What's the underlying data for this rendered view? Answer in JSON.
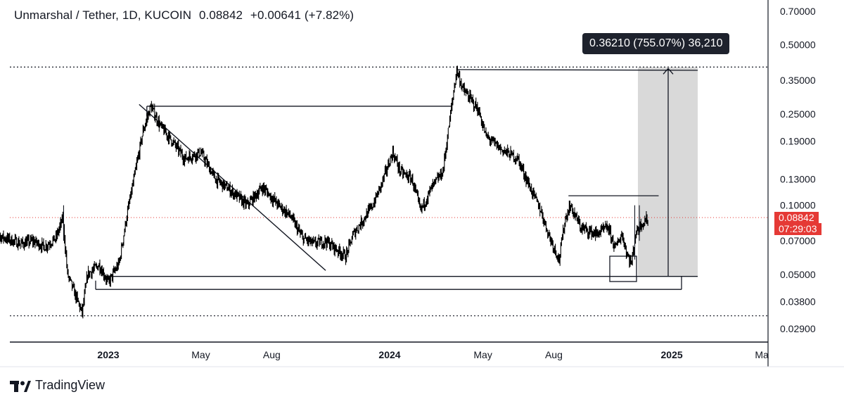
{
  "header": {
    "symbol": "Unmarshal / Tether, 1D, KUCOIN",
    "last": "0.08842",
    "change": "+0.00641 (+7.82%)"
  },
  "price_tag": {
    "price": "0.08842",
    "countdown": "07:29:03"
  },
  "measure_label": "0.36210 (755.07%) 36,210",
  "brand": {
    "name": "TradingView"
  },
  "colors": {
    "candle": "#000000",
    "last_price_line": "#e53935",
    "shade": "#d9d9d9",
    "label_bg": "#1e222d"
  },
  "chart_data": {
    "type": "line",
    "y_scale": "log",
    "ylim": [
      0.026,
      0.75
    ],
    "x_ticks": [
      {
        "label": "2023",
        "date": "2023-01-01",
        "bold": true
      },
      {
        "label": "May",
        "date": "2023-05-01",
        "bold": false
      },
      {
        "label": "Aug",
        "date": "2023-08-01",
        "bold": false
      },
      {
        "label": "2024",
        "date": "2024-01-01",
        "bold": true
      },
      {
        "label": "May",
        "date": "2024-05-01",
        "bold": false
      },
      {
        "label": "Aug",
        "date": "2024-08-01",
        "bold": false
      },
      {
        "label": "2025",
        "date": "2025-01-01",
        "bold": true
      },
      {
        "label": "May",
        "date": "2025-05-01",
        "bold": false
      }
    ],
    "y_ticks": [
      "0.70000",
      "0.50000",
      "0.35000",
      "0.25000",
      "0.19000",
      "0.13000",
      "0.10000",
      "0.07000",
      "0.05000",
      "0.03800",
      "0.02900"
    ],
    "price_points": [
      [
        "2022-08-01",
        0.075
      ],
      [
        "2022-08-20",
        0.072
      ],
      [
        "2022-09-10",
        0.068
      ],
      [
        "2022-09-25",
        0.07
      ],
      [
        "2022-10-10",
        0.066
      ],
      [
        "2022-10-25",
        0.072
      ],
      [
        "2022-11-03",
        0.088
      ],
      [
        "2022-11-09",
        0.05
      ],
      [
        "2022-11-20",
        0.04
      ],
      [
        "2022-11-28",
        0.034
      ],
      [
        "2022-12-05",
        0.05
      ],
      [
        "2022-12-20",
        0.055
      ],
      [
        "2023-01-01",
        0.046
      ],
      [
        "2023-01-15",
        0.056
      ],
      [
        "2023-01-25",
        0.09
      ],
      [
        "2023-02-05",
        0.14
      ],
      [
        "2023-02-15",
        0.21
      ],
      [
        "2023-02-25",
        0.27
      ],
      [
        "2023-03-10",
        0.22
      ],
      [
        "2023-03-25",
        0.19
      ],
      [
        "2023-04-10",
        0.16
      ],
      [
        "2023-05-01",
        0.17
      ],
      [
        "2023-05-20",
        0.13
      ],
      [
        "2023-06-10",
        0.115
      ],
      [
        "2023-06-30",
        0.1
      ],
      [
        "2023-07-20",
        0.12
      ],
      [
        "2023-08-10",
        0.1
      ],
      [
        "2023-08-25",
        0.09
      ],
      [
        "2023-09-10",
        0.072
      ],
      [
        "2023-09-25",
        0.068
      ],
      [
        "2023-10-10",
        0.07
      ],
      [
        "2023-10-25",
        0.064
      ],
      [
        "2023-11-05",
        0.06
      ],
      [
        "2023-11-15",
        0.075
      ],
      [
        "2023-12-01",
        0.09
      ],
      [
        "2023-12-10",
        0.1
      ],
      [
        "2023-12-20",
        0.12
      ],
      [
        "2024-01-05",
        0.17
      ],
      [
        "2024-01-15",
        0.14
      ],
      [
        "2024-01-30",
        0.13
      ],
      [
        "2024-02-10",
        0.095
      ],
      [
        "2024-02-25",
        0.12
      ],
      [
        "2024-03-10",
        0.14
      ],
      [
        "2024-03-20",
        0.25
      ],
      [
        "2024-03-28",
        0.39
      ],
      [
        "2024-04-05",
        0.32
      ],
      [
        "2024-04-15",
        0.29
      ],
      [
        "2024-04-25",
        0.26
      ],
      [
        "2024-05-05",
        0.2
      ],
      [
        "2024-05-25",
        0.175
      ],
      [
        "2024-06-15",
        0.16
      ],
      [
        "2024-07-01",
        0.12
      ],
      [
        "2024-07-15",
        0.095
      ],
      [
        "2024-07-25",
        0.075
      ],
      [
        "2024-08-01",
        0.066
      ],
      [
        "2024-08-08",
        0.058
      ],
      [
        "2024-08-15",
        0.085
      ],
      [
        "2024-08-22",
        0.1
      ],
      [
        "2024-09-05",
        0.08
      ],
      [
        "2024-09-25",
        0.075
      ],
      [
        "2024-10-10",
        0.08
      ],
      [
        "2024-10-20",
        0.065
      ],
      [
        "2024-10-28",
        0.075
      ],
      [
        "2024-11-05",
        0.06
      ],
      [
        "2024-11-10",
        0.056
      ],
      [
        "2024-11-15",
        0.075
      ],
      [
        "2024-11-22",
        0.083
      ],
      [
        "2024-12-02",
        0.088
      ]
    ],
    "drawings": {
      "top_resistance": 0.39,
      "mid_resistance": 0.27,
      "local_resistance": 0.11,
      "support": 0.049,
      "low_support": 0.043,
      "lowest_line": 0.033,
      "last_price": 0.08842,
      "target": 0.4,
      "downtrend": [
        [
          "2023-02-10",
          0.275
        ],
        [
          "2023-10-10",
          0.052
        ]
      ]
    }
  }
}
